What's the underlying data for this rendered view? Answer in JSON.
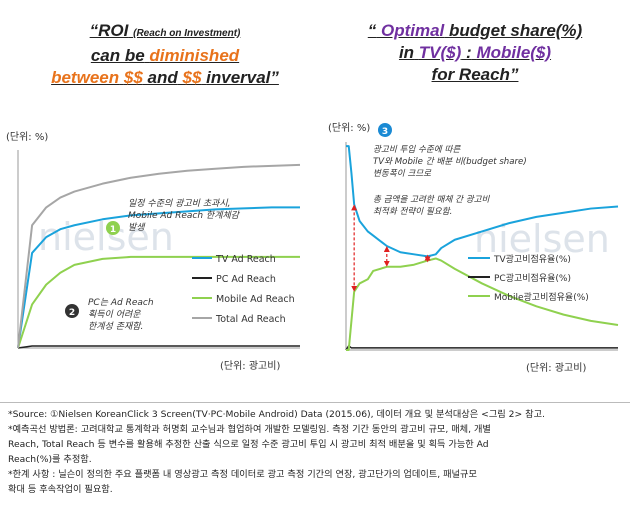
{
  "left_title": {
    "line1_pre": "“ROI",
    "line1_paren": "(Reach on Investment)",
    "line2_pre": "can be",
    "line2_em": "diminished",
    "line3_a": "between",
    "line3_b": "$$",
    "line3_c": "and",
    "line3_d": "$$",
    "line3_e": "inverval”"
  },
  "right_title": {
    "line1_pre": "“",
    "line1_em": "Optimal",
    "line1_post": "budget share(%)",
    "line2_pre": "in",
    "line2_tv": "TV($)",
    "line2_mid": ":",
    "line2_mob": "Mobile($)",
    "line3": "for Reach”"
  },
  "left_chart": {
    "unit_y": "(단위: %)",
    "unit_x": "(단위: 광고비)",
    "watermark": "nielsen",
    "callout1_num": "1",
    "callout1_text": [
      "일정 수준의 광고비 초과시,",
      "Mobile Ad Reach 한계체감",
      "발생"
    ],
    "callout2_num": "2",
    "callout2_text": [
      "PC는 Ad Reach",
      "획득이 어려운",
      "한계성 존재함."
    ]
  },
  "right_chart": {
    "unit_y": "(단위: %)",
    "unit_x": "(단위: 광고비)",
    "watermark": "nielsen",
    "callout3_num": "3",
    "callout3_text_a": [
      "광고비 투입 수준에 따른",
      "TV와 Mobile 간 배분 비(budget share)",
      "변동폭이 크므로"
    ],
    "callout3_text_b": [
      "총 금액을 고려한 매체 간 광고비",
      "최적화 전략이 필요함."
    ]
  },
  "notes": {
    "source": "*Source: ①Nielsen KoreanClick 3 Screen(TV·PC·Mobile Android) Data (2015.06), 데이터 개요 및 분석대상은 <그림 2> 참고.",
    "method_1": "*예측곡선 방법론: 고려대학교 통계학과 허명회 교수님과 협업하여 개발한 모델링임. 측정 기간 동안의 광고비 규모, 매체, 개별",
    "method_2": "Reach, Total Reach 등 변수를 활용해 추정한 산출 식으로 일정 수준 광고비 투입 시 광고비 최적 배분을 및 획득 가능한 Ad",
    "method_3": "Reach(%)를 추정함.",
    "limit_1": "*한계 사항 : 닐슨이 정의한 주요 플랫폼 내 영상광고 측정 데이터로 광고 측정 기간의 연장, 광고단가의 업데이트, 패널규모",
    "limit_2": "확대 등 후속작업이 필요함."
  },
  "colors": {
    "tv": "#1aa3dc",
    "pc": "#222222",
    "mobile": "#8fd14f",
    "total": "#a6a6a6",
    "arrow": "#e02020",
    "callout": "#333333",
    "callout3": "#1a8ad4"
  },
  "chart_data": [
    {
      "type": "line",
      "title": "",
      "xlabel": "(단위: 광고비)",
      "ylabel": "(단위: %)",
      "x": [
        0,
        5,
        10,
        15,
        20,
        30,
        40,
        50,
        60,
        70,
        80,
        90,
        100
      ],
      "ylim": [
        0,
        100
      ],
      "grid": false,
      "legend": "right",
      "series": [
        {
          "name": "TV Ad Reach",
          "color": "#1aa3dc",
          "values": [
            0,
            48,
            56,
            60,
            62,
            65,
            67,
            68,
            69,
            70,
            70.5,
            71,
            71
          ]
        },
        {
          "name": "PC Ad Reach",
          "color": "#222222",
          "values": [
            0,
            1,
            1,
            1,
            1,
            1,
            1,
            1,
            1,
            1,
            1,
            1,
            1
          ]
        },
        {
          "name": "Mobile Ad Reach",
          "color": "#8fd14f",
          "values": [
            0,
            22,
            32,
            38,
            42,
            45,
            46,
            46,
            46,
            46,
            46,
            46,
            46
          ]
        },
        {
          "name": "Total Ad Reach",
          "color": "#a6a6a6",
          "values": [
            0,
            62,
            71,
            76,
            79,
            83,
            86,
            88,
            89.5,
            90.5,
            91.5,
            92,
            92.5
          ]
        }
      ]
    },
    {
      "type": "line",
      "title": "",
      "xlabel": "(단위: 광고비)",
      "ylabel": "(단위: %)",
      "x": [
        0,
        1,
        2,
        3,
        5,
        8,
        10,
        15,
        20,
        25,
        30,
        33,
        35,
        40,
        50,
        60,
        70,
        80,
        90,
        100
      ],
      "ylim": [
        0,
        100
      ],
      "grid": false,
      "legend": "right",
      "series": [
        {
          "name": "TV광고비점유율(%)",
          "color": "#1aa3dc",
          "values": [
            98,
            98,
            85,
            70,
            62,
            57,
            55,
            50,
            47,
            46,
            45,
            46,
            49,
            53,
            57,
            61,
            64,
            66,
            68,
            69
          ]
        },
        {
          "name": "PC광고비점유율(%)",
          "color": "#222222",
          "values": [
            0,
            2,
            1,
            1,
            1,
            1,
            1,
            1,
            1,
            1,
            1,
            1,
            1,
            1,
            1,
            1,
            1,
            1,
            1,
            1
          ]
        },
        {
          "name": "Mobile광고비점유율(%)",
          "color": "#8fd14f",
          "values": [
            0,
            0,
            14,
            28,
            32,
            34,
            38,
            40,
            40,
            41,
            43,
            44,
            43,
            39,
            32,
            26,
            21,
            17,
            14,
            12
          ]
        }
      ]
    }
  ]
}
